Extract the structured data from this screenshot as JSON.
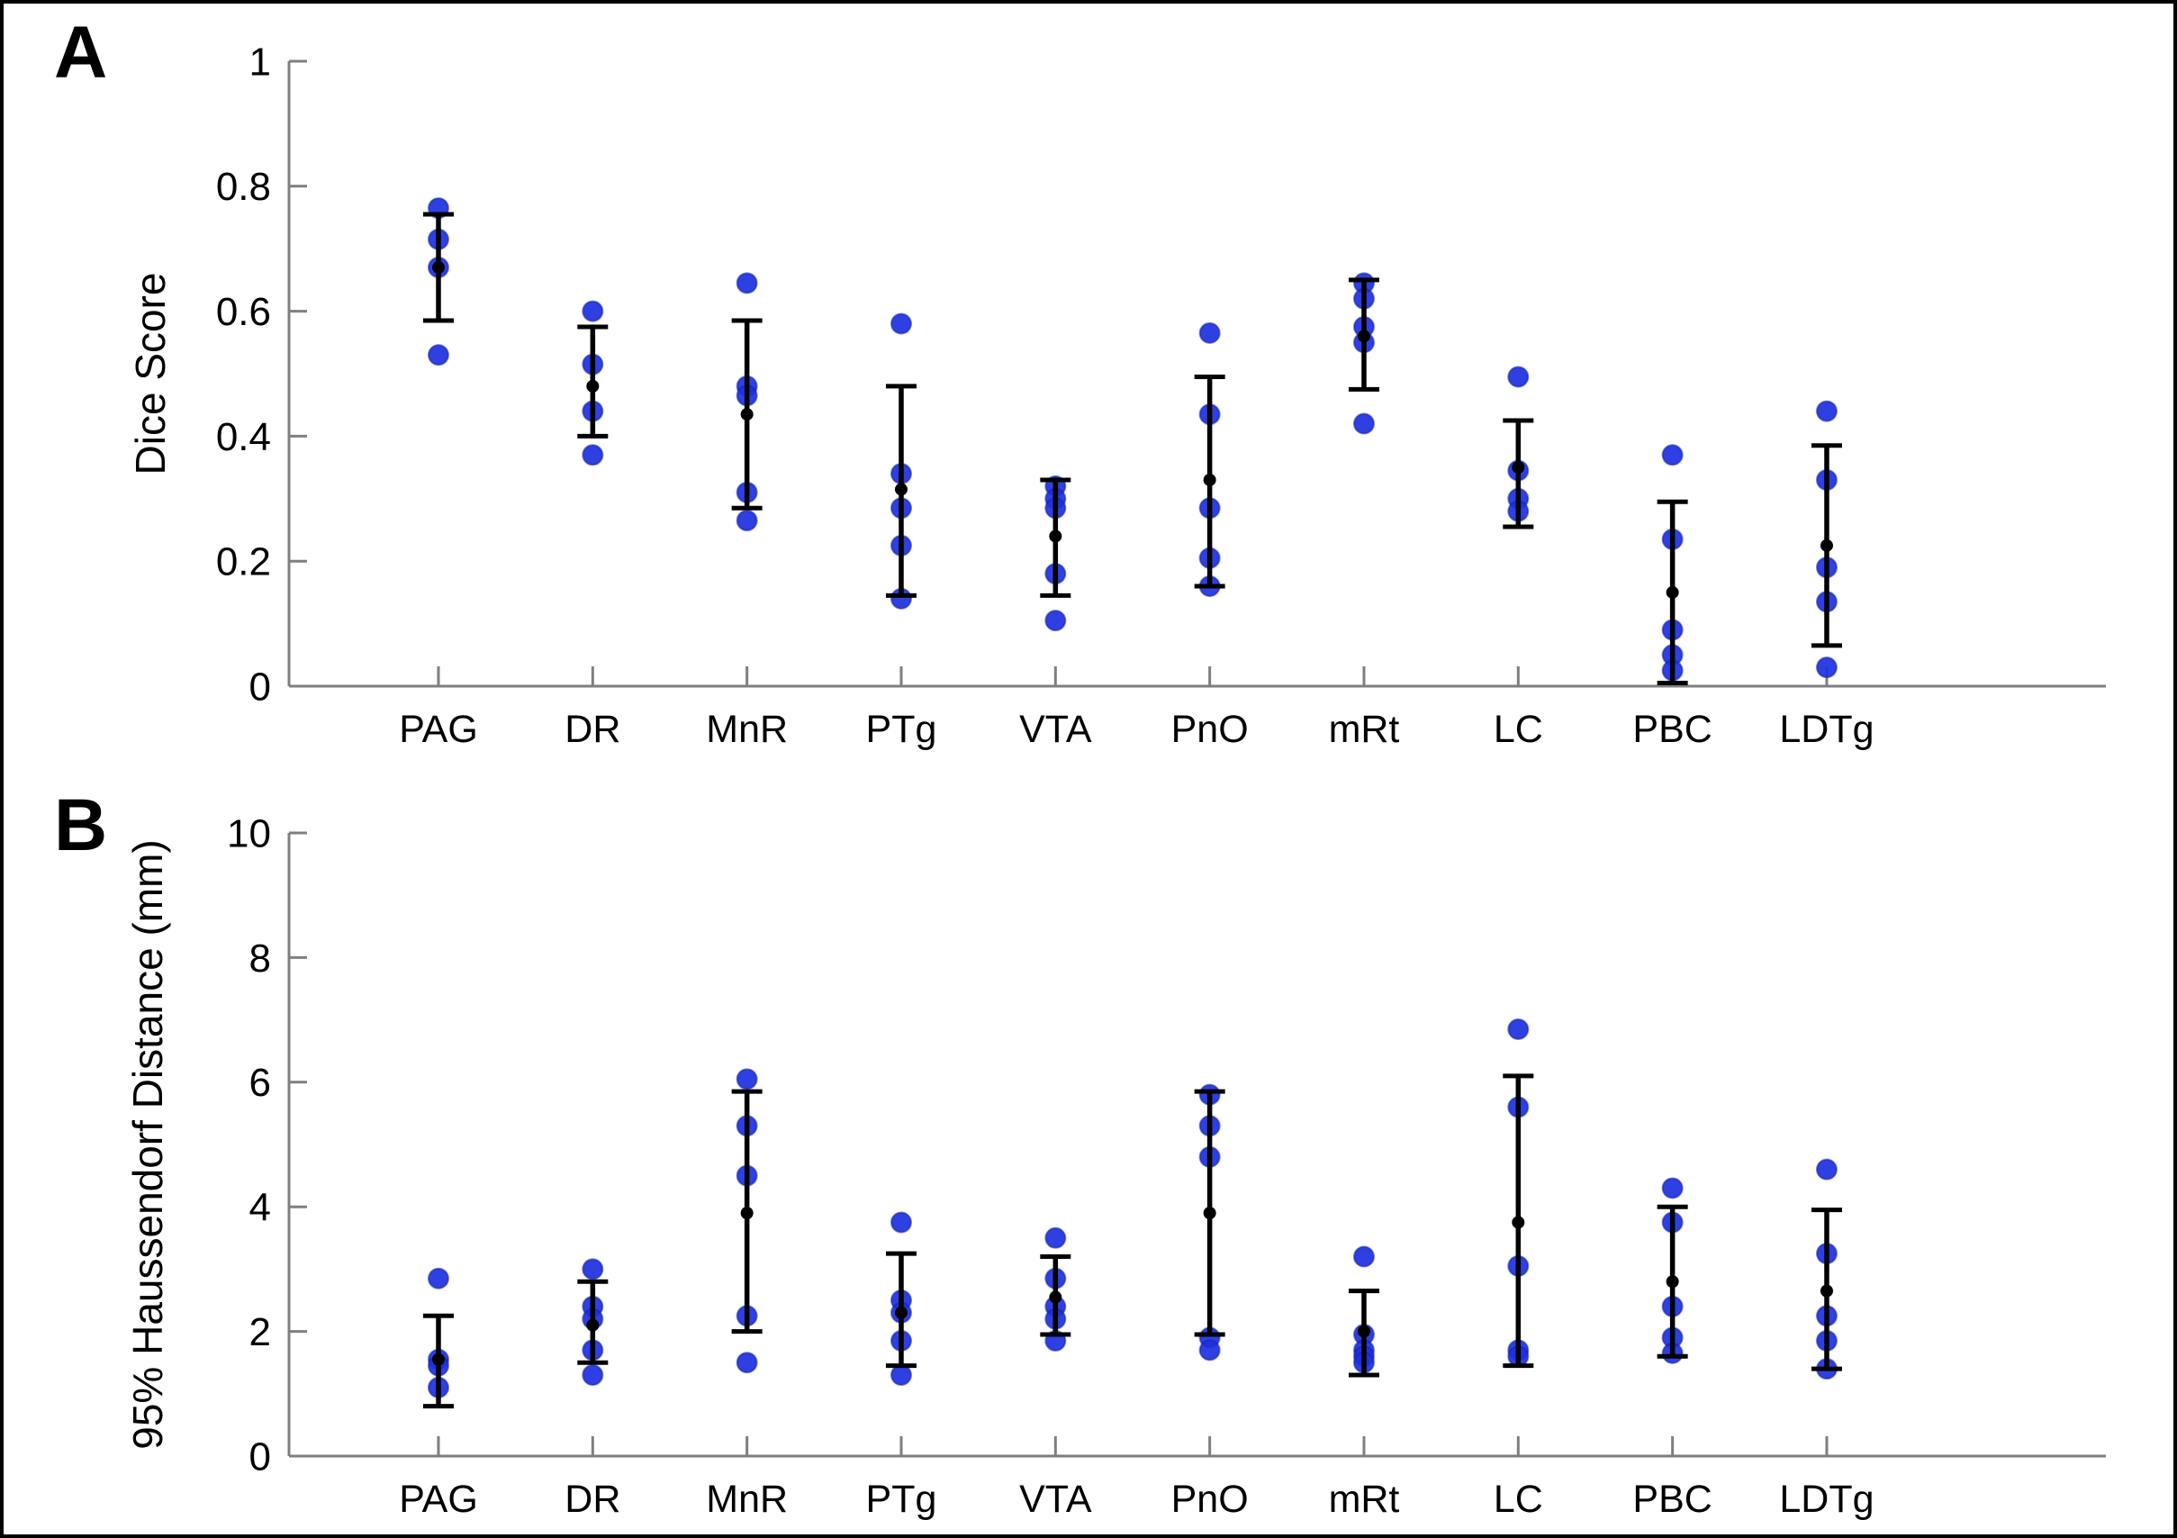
{
  "page": {
    "background": "#ffffff",
    "frame_color": "#000000"
  },
  "colors": {
    "dot": "#1d30e0",
    "dot_edge": "#1120a8",
    "mean_marker": "#000000",
    "error_bar": "#000000",
    "axis": "#7f7f7f",
    "text": "#000000"
  },
  "panels": [
    {
      "letter": "A"
    },
    {
      "letter": "B"
    }
  ],
  "chart_data": [
    {
      "panel": "A",
      "type": "scatter",
      "title": "",
      "xlabel": "",
      "ylabel": "Dice Score",
      "ylim": [
        0,
        1
      ],
      "yticks": [
        0,
        0.2,
        0.4,
        0.6,
        0.8,
        1
      ],
      "ytick_labels": [
        "0",
        "0.2",
        "0.4",
        "0.6",
        "0.8",
        "1"
      ],
      "grid": false,
      "legend": "none",
      "marker": "filled-circle",
      "error_bar_style": "mean plus-minus sd with caps",
      "categories": [
        "PAG",
        "DR",
        "MnR",
        "PTg",
        "VTA",
        "PnO",
        "mRt",
        "LC",
        "PBC",
        "LDTg"
      ],
      "series": [
        {
          "category": "PAG",
          "points": [
            0.765,
            0.715,
            0.67,
            0.53
          ],
          "mean": 0.67,
          "err_low": 0.585,
          "err_high": 0.755
        },
        {
          "category": "DR",
          "points": [
            0.6,
            0.515,
            0.44,
            0.37
          ],
          "mean": 0.48,
          "err_low": 0.4,
          "err_high": 0.575
        },
        {
          "category": "MnR",
          "points": [
            0.645,
            0.48,
            0.465,
            0.31,
            0.265
          ],
          "mean": 0.435,
          "err_low": 0.285,
          "err_high": 0.585
        },
        {
          "category": "PTg",
          "points": [
            0.58,
            0.34,
            0.285,
            0.225,
            0.14
          ],
          "mean": 0.315,
          "err_low": 0.145,
          "err_high": 0.48
        },
        {
          "category": "VTA",
          "points": [
            0.32,
            0.3,
            0.285,
            0.18,
            0.105
          ],
          "mean": 0.24,
          "err_low": 0.145,
          "err_high": 0.33
        },
        {
          "category": "PnO",
          "points": [
            0.565,
            0.435,
            0.285,
            0.205,
            0.16
          ],
          "mean": 0.33,
          "err_low": 0.16,
          "err_high": 0.495
        },
        {
          "category": "mRt",
          "points": [
            0.645,
            0.62,
            0.575,
            0.55,
            0.42
          ],
          "mean": 0.56,
          "err_low": 0.475,
          "err_high": 0.65
        },
        {
          "category": "LC",
          "points": [
            0.495,
            0.345,
            0.3,
            0.28
          ],
          "mean": 0.35,
          "err_low": 0.255,
          "err_high": 0.425
        },
        {
          "category": "PBC",
          "points": [
            0.37,
            0.235,
            0.09,
            0.05,
            0.025
          ],
          "mean": 0.15,
          "err_low": 0.005,
          "err_high": 0.295
        },
        {
          "category": "LDTg",
          "points": [
            0.44,
            0.33,
            0.19,
            0.135,
            0.03
          ],
          "mean": 0.225,
          "err_low": 0.065,
          "err_high": 0.385
        }
      ]
    },
    {
      "panel": "B",
      "type": "scatter",
      "title": "",
      "xlabel": "",
      "ylabel": "95% Haussendorf Distance (mm)",
      "ylim": [
        0,
        10
      ],
      "yticks": [
        0,
        2,
        4,
        6,
        8,
        10
      ],
      "ytick_labels": [
        "0",
        "2",
        "4",
        "6",
        "8",
        "10"
      ],
      "grid": false,
      "legend": "none",
      "marker": "filled-circle",
      "error_bar_style": "mean plus-minus sd with caps",
      "categories": [
        "PAG",
        "DR",
        "MnR",
        "PTg",
        "VTA",
        "PnO",
        "mRt",
        "LC",
        "PBC",
        "LDTg"
      ],
      "series": [
        {
          "category": "PAG",
          "points": [
            2.85,
            1.55,
            1.45,
            1.1
          ],
          "mean": 1.55,
          "err_low": 0.8,
          "err_high": 2.25
        },
        {
          "category": "DR",
          "points": [
            3.0,
            2.4,
            2.2,
            1.7,
            1.3
          ],
          "mean": 2.1,
          "err_low": 1.5,
          "err_high": 2.8
        },
        {
          "category": "MnR",
          "points": [
            6.05,
            5.3,
            4.5,
            2.25,
            1.5
          ],
          "mean": 3.9,
          "err_low": 2.0,
          "err_high": 5.85
        },
        {
          "category": "PTg",
          "points": [
            3.75,
            2.5,
            2.3,
            1.85,
            1.3
          ],
          "mean": 2.3,
          "err_low": 1.45,
          "err_high": 3.25
        },
        {
          "category": "VTA",
          "points": [
            3.5,
            2.85,
            2.4,
            2.2,
            1.85
          ],
          "mean": 2.55,
          "err_low": 1.95,
          "err_high": 3.2
        },
        {
          "category": "PnO",
          "points": [
            5.8,
            5.3,
            4.8,
            1.9,
            1.7
          ],
          "mean": 3.9,
          "err_low": 1.95,
          "err_high": 5.85
        },
        {
          "category": "mRt",
          "points": [
            3.2,
            1.95,
            1.7,
            1.6,
            1.5
          ],
          "mean": 2.0,
          "err_low": 1.3,
          "err_high": 2.65
        },
        {
          "category": "LC",
          "points": [
            6.85,
            5.6,
            3.05,
            1.7,
            1.6
          ],
          "mean": 3.75,
          "err_low": 1.45,
          "err_high": 6.1
        },
        {
          "category": "PBC",
          "points": [
            4.3,
            3.75,
            2.4,
            1.9,
            1.65
          ],
          "mean": 2.8,
          "err_low": 1.6,
          "err_high": 4.0
        },
        {
          "category": "LDTg",
          "points": [
            4.6,
            3.25,
            2.25,
            1.85,
            1.4
          ],
          "mean": 2.65,
          "err_low": 1.4,
          "err_high": 3.95
        }
      ]
    }
  ]
}
